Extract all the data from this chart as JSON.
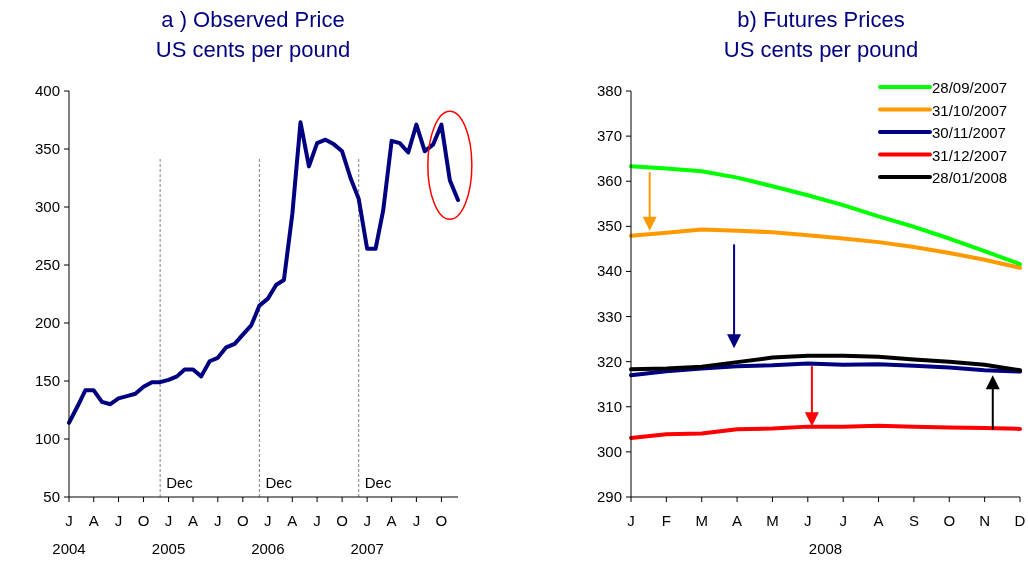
{
  "chart_data": [
    {
      "type": "line",
      "title": "a ) Observed Price",
      "subtitle": "US cents per pound",
      "x": [
        "2004-01",
        "2004-02",
        "2004-03",
        "2004-04",
        "2004-05",
        "2004-06",
        "2004-07",
        "2004-08",
        "2004-09",
        "2004-10",
        "2004-11",
        "2004-12",
        "2005-01",
        "2005-02",
        "2005-03",
        "2005-04",
        "2005-05",
        "2005-06",
        "2005-07",
        "2005-08",
        "2005-09",
        "2005-10",
        "2005-11",
        "2005-12",
        "2006-01",
        "2006-02",
        "2006-03",
        "2006-04",
        "2006-05",
        "2006-06",
        "2006-07",
        "2006-08",
        "2006-09",
        "2006-10",
        "2006-11",
        "2006-12",
        "2007-01",
        "2007-02",
        "2007-03",
        "2007-04",
        "2007-05",
        "2007-06",
        "2007-07",
        "2007-08",
        "2007-09",
        "2007-10",
        "2007-11",
        "2007-12"
      ],
      "series": [
        {
          "color": "#000080",
          "values": [
            114,
            128,
            142,
            142,
            132,
            130,
            135,
            137,
            139,
            145,
            149,
            149,
            151,
            154,
            160,
            160,
            154,
            167,
            170,
            179,
            182,
            190,
            198,
            215,
            221,
            233,
            237,
            294,
            373,
            335,
            355,
            358,
            354,
            348,
            325,
            307,
            264,
            264,
            297,
            357,
            355,
            347,
            371,
            348,
            354,
            371,
            323,
            306
          ]
        }
      ],
      "xlim": [
        "2004-01",
        "2007-12"
      ],
      "xticks": [
        {
          "value": "2004-01",
          "label": "J\n2004"
        },
        {
          "value": "2004-04",
          "label": "A"
        },
        {
          "value": "2004-07",
          "label": "J"
        },
        {
          "value": "2004-10",
          "label": "O"
        },
        {
          "value": "2005-01",
          "label": "J\n2005"
        },
        {
          "value": "2005-04",
          "label": "A"
        },
        {
          "value": "2005-07",
          "label": "J"
        },
        {
          "value": "2005-10",
          "label": "O"
        },
        {
          "value": "2006-01",
          "label": "J\n2006"
        },
        {
          "value": "2006-04",
          "label": "A"
        },
        {
          "value": "2006-07",
          "label": "J"
        },
        {
          "value": "2006-10",
          "label": "O"
        },
        {
          "value": "2007-01",
          "label": "J\n2007"
        },
        {
          "value": "2007-04",
          "label": "A"
        },
        {
          "value": "2007-07",
          "label": "J"
        },
        {
          "value": "2007-10",
          "label": "O"
        }
      ],
      "ylim": [
        50,
        400
      ],
      "yticks": [
        50,
        100,
        150,
        200,
        250,
        300,
        350,
        400
      ],
      "ref_lines": [
        {
          "axis": "x",
          "value": "2004-12",
          "label": "Dec",
          "color": "#808080",
          "line_style": "dashed"
        },
        {
          "axis": "x",
          "value": "2005-12",
          "label": "Dec",
          "color": "#808080",
          "line_style": "dashed"
        },
        {
          "axis": "x",
          "value": "2006-12",
          "label": "Dec",
          "color": "#808080",
          "line_style": "dashed"
        }
      ],
      "grid": false,
      "legend": false
    },
    {
      "type": "line",
      "title": "b) Futures Prices",
      "subtitle": "US cents per pound",
      "xlabel": "2008",
      "categories": [
        "J",
        "F",
        "M",
        "A",
        "M",
        "J",
        "J",
        "A",
        "S",
        "O",
        "N",
        "D"
      ],
      "series": [
        {
          "name": "28/09/2007",
          "color": "#00ff00",
          "values": [
            363.3,
            362.8,
            362.2,
            360.8,
            358.9,
            356.9,
            354.7,
            352.2,
            349.9,
            347.3,
            344.5,
            341.6
          ]
        },
        {
          "name": "31/10/2007",
          "color": "#ff9900",
          "values": [
            347.9,
            348.6,
            349.3,
            349.0,
            348.7,
            348.0,
            347.3,
            346.5,
            345.4,
            344.1,
            342.6,
            340.8
          ]
        },
        {
          "name": "30/11/2007",
          "color": "#000080",
          "values": [
            317.0,
            317.9,
            318.5,
            319.0,
            319.2,
            319.6,
            319.3,
            319.4,
            319.1,
            318.7,
            318.1,
            317.8
          ]
        },
        {
          "name": "31/12/2007",
          "color": "#ff0000",
          "values": [
            303.1,
            303.9,
            304.1,
            305.0,
            305.2,
            305.6,
            305.6,
            305.8,
            305.6,
            305.4,
            305.3,
            305.1
          ]
        },
        {
          "name": "28/01/2008",
          "color": "#000000",
          "values": [
            318.3,
            318.5,
            318.9,
            319.9,
            320.9,
            321.3,
            321.3,
            321.1,
            320.5,
            320.0,
            319.3,
            318.1
          ]
        }
      ],
      "ylim": [
        290,
        380
      ],
      "yticks": [
        290,
        300,
        310,
        320,
        330,
        340,
        350,
        360,
        370,
        380
      ],
      "grid": false,
      "legend": "top right"
    }
  ]
}
